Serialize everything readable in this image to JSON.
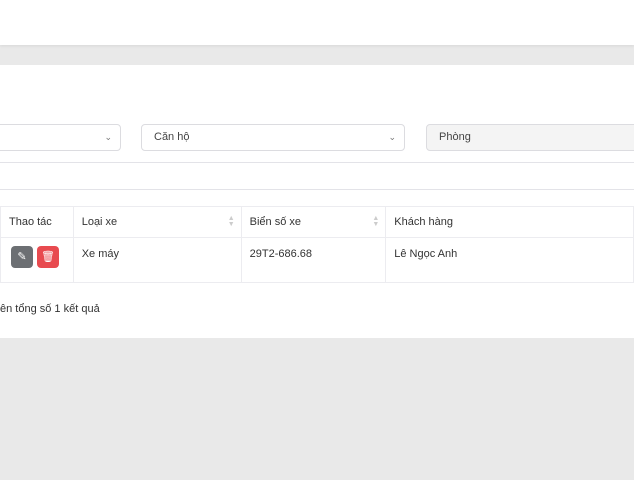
{
  "filters": {
    "first": "",
    "apartment": "Căn hộ",
    "room": "Phòng"
  },
  "table": {
    "headers": [
      "Thao tác",
      "Loại xe",
      "Biển số xe",
      "Khách hàng"
    ],
    "rows": [
      {
        "type": "Xe máy",
        "plate": "29T2-686.68",
        "customer": "Lê Ngọc Anh"
      }
    ]
  },
  "icons": {
    "edit": "edit-icon",
    "delete": "trash-icon"
  },
  "colors": {
    "edit": "#6c6f73",
    "delete": "#e84a4f"
  },
  "footer": "ên tổng số 1 kết quả"
}
